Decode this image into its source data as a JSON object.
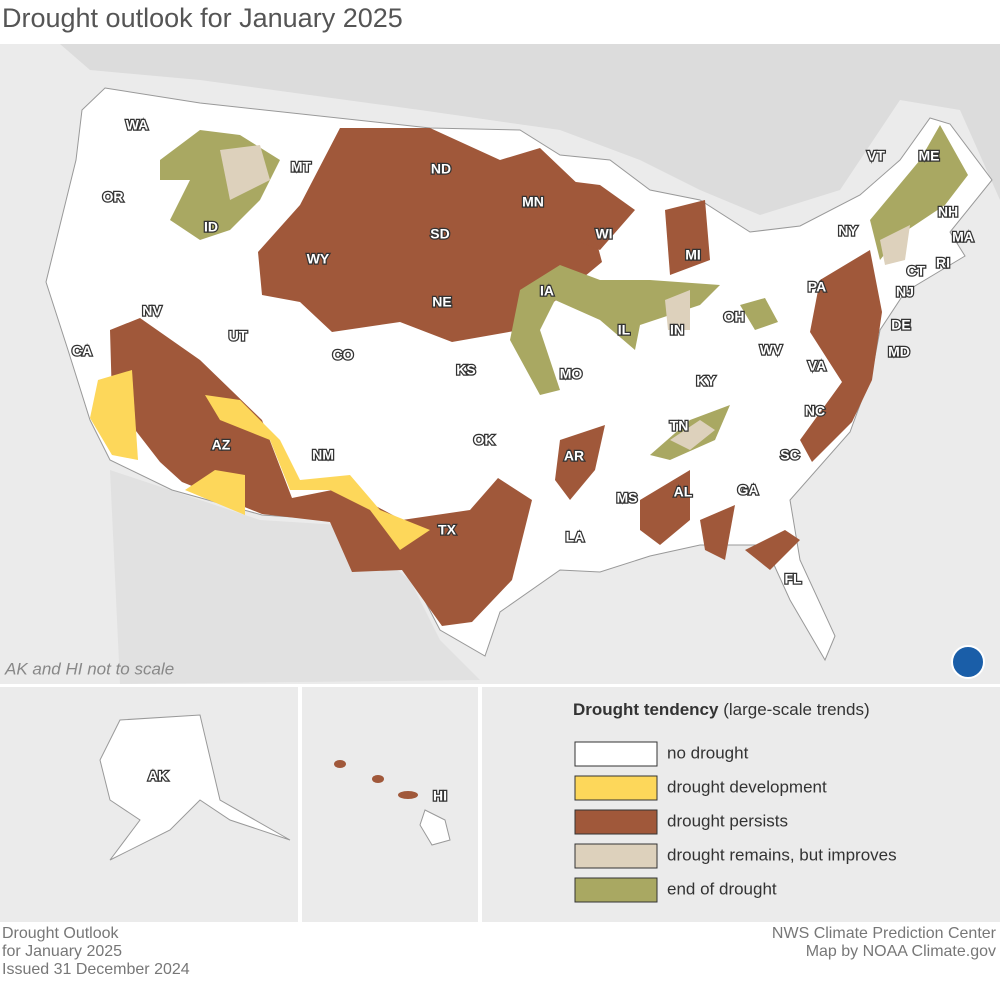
{
  "title": "Drought outlook for January 2025",
  "map": {
    "note": "AK and HI not to scale",
    "state_labels": [
      "WA",
      "OR",
      "ID",
      "MT",
      "ND",
      "MN",
      "WI",
      "MI",
      "VT",
      "ME",
      "NH",
      "MA",
      "NY",
      "CT",
      "RI",
      "PA",
      "NJ",
      "DE",
      "MD",
      "SD",
      "WY",
      "NE",
      "IA",
      "IL",
      "IN",
      "OH",
      "WV",
      "VA",
      "NV",
      "UT",
      "CO",
      "KS",
      "MO",
      "KY",
      "CA",
      "AZ",
      "NM",
      "OK",
      "AR",
      "TN",
      "NC",
      "SC",
      "AL",
      "GA",
      "MS",
      "TX",
      "LA",
      "FL",
      "AK",
      "HI"
    ]
  },
  "legend": {
    "title": "Drought tendency",
    "subtitle": "(large-scale trends)",
    "items": [
      {
        "label": "no drought",
        "color": "#ffffff"
      },
      {
        "label": "drought development",
        "color": "#fdd75a"
      },
      {
        "label": "drought persists",
        "color": "#a0583a"
      },
      {
        "label": "drought remains, but improves",
        "color": "#ddd1bc"
      },
      {
        "label": "end of drought",
        "color": "#a9a862"
      }
    ]
  },
  "footer": {
    "left": [
      "Drought Outlook",
      "for January 2025",
      "Issued 31 December 2024"
    ],
    "right": [
      "NWS Climate Prediction Center",
      "Map by NOAA Climate.gov"
    ]
  }
}
